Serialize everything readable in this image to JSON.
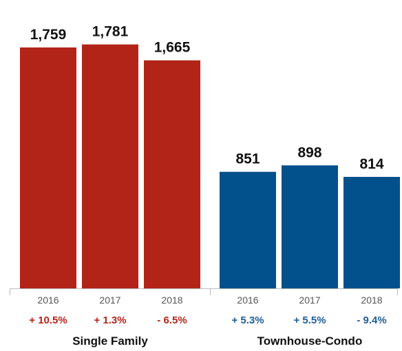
{
  "chart_data": {
    "type": "bar",
    "groups": [
      {
        "name": "Single Family",
        "color": "#B22418",
        "change_color": "#B22418",
        "bars": [
          {
            "year": "2016",
            "value": 1759,
            "value_label": "1,759",
            "change": "+ 10.5%"
          },
          {
            "year": "2017",
            "value": 1781,
            "value_label": "1,781",
            "change": "+ 1.3%"
          },
          {
            "year": "2018",
            "value": 1665,
            "value_label": "1,665",
            "change": "- 6.5%"
          }
        ]
      },
      {
        "name": "Townhouse-Condo",
        "color": "#02508C",
        "change_color": "#1F5C98",
        "bars": [
          {
            "year": "2016",
            "value": 851,
            "value_label": "851",
            "change": "+ 5.3%"
          },
          {
            "year": "2017",
            "value": 898,
            "value_label": "898",
            "change": "+ 5.5%"
          },
          {
            "year": "2018",
            "value": 814,
            "value_label": "814",
            "change": "- 9.4%"
          }
        ]
      }
    ],
    "ylim": [
      0,
      2000
    ],
    "grid": false,
    "legend": "none",
    "axis_color": "#BBBBBB"
  }
}
